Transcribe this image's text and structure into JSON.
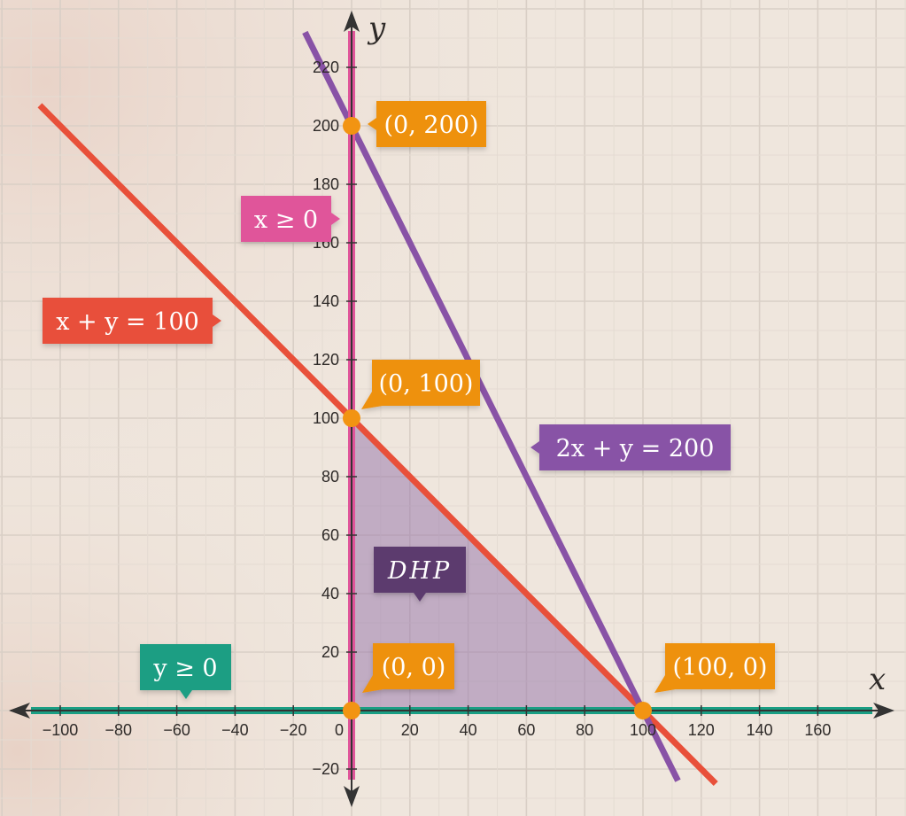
{
  "chart_data": {
    "type": "line",
    "xlabel": "x",
    "ylabel": "y",
    "xlim": [
      -110,
      180
    ],
    "ylim": [
      -30,
      230
    ],
    "x_ticks": [
      -100,
      -80,
      -60,
      -40,
      -20,
      0,
      20,
      40,
      60,
      80,
      100,
      120,
      140,
      160
    ],
    "y_ticks": [
      -20,
      20,
      40,
      60,
      80,
      100,
      120,
      140,
      160,
      180,
      200,
      220
    ],
    "x_tick_labels": [
      "−100",
      "−80",
      "−60",
      "−40",
      "−20",
      "0",
      "20",
      "40",
      "60",
      "80",
      "100",
      "120",
      "140",
      "160"
    ],
    "y_tick_labels": [
      "−20",
      "20",
      "40",
      "60",
      "80",
      "100",
      "120",
      "140",
      "160",
      "180",
      "200",
      "220"
    ],
    "grid": true,
    "series": [
      {
        "name": "x + y = 100",
        "color": "#e8503a",
        "points": [
          [
            -107,
            207
          ],
          [
            125,
            -25
          ]
        ]
      },
      {
        "name": "2x + y = 200",
        "color": "#8852a6",
        "points": [
          [
            -16,
            232
          ],
          [
            112,
            -24
          ]
        ]
      },
      {
        "name": "x ≥ 0",
        "color": "#e0559a",
        "points": [
          [
            0,
            232
          ],
          [
            0,
            -30
          ]
        ]
      },
      {
        "name": "y ≥ 0",
        "color": "#1a9e83",
        "points": [
          [
            -110,
            0
          ],
          [
            180,
            0
          ]
        ]
      }
    ],
    "region": {
      "name": "DHP",
      "color": "#9a7cad",
      "vertices": [
        [
          0,
          0
        ],
        [
          0,
          100
        ],
        [
          100,
          0
        ]
      ]
    },
    "points": [
      {
        "label": "(0, 200)",
        "x": 0,
        "y": 200
      },
      {
        "label": "(0, 100)",
        "x": 0,
        "y": 100
      },
      {
        "label": "(0, 0)",
        "x": 0,
        "y": 0
      },
      {
        "label": "(100, 0)",
        "x": 100,
        "y": 0
      }
    ],
    "point_color": "#f29412",
    "annotations": [
      {
        "text": "x + y = 100",
        "color": "#e8503a"
      },
      {
        "text": "2x + y = 200",
        "color": "#8852a6"
      },
      {
        "text": "x ≥ 0",
        "color": "#e0559a"
      },
      {
        "text": "y ≥ 0",
        "color": "#1a9e83"
      },
      {
        "text": "DHP",
        "color": "#5b3a6e"
      },
      {
        "text": "(0, 200)",
        "color": "#ee9111"
      },
      {
        "text": "(0, 100)",
        "color": "#ee9111"
      },
      {
        "text": "(0, 0)",
        "color": "#ee9111"
      },
      {
        "text": "(100, 0)",
        "color": "#ee9111"
      }
    ]
  }
}
